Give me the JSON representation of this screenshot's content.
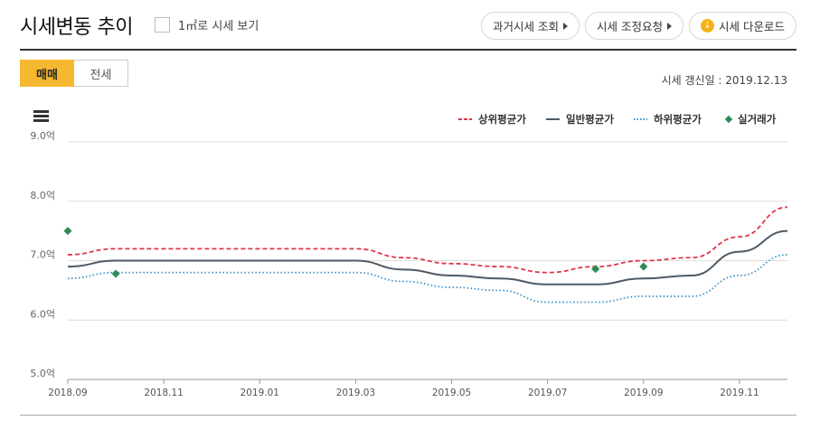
{
  "header": {
    "title": "시세변동 추이",
    "unit_toggle_label": "1㎡로 시세 보기"
  },
  "buttons": {
    "past_price": "과거시세 조회",
    "adjust_request": "시세 조정요청",
    "download": "시세 다운로드",
    "download_icon_glyph": "↓"
  },
  "tabs": [
    {
      "label": "매매",
      "active": true
    },
    {
      "label": "전세",
      "active": false
    }
  ],
  "update_text": "시세 갱신일 : 2019.12.13",
  "colors": {
    "upper": "#e0364a",
    "general": "#4e5a66",
    "lower": "#3d8fc9",
    "actual": "#2e8b57",
    "accent": "#f6b731"
  },
  "chart_data": {
    "type": "line",
    "x_ticks": [
      "2018.09",
      "2018.11",
      "2019.01",
      "2019.03",
      "2019.05",
      "2019.07",
      "2019.09",
      "2019.11"
    ],
    "x_range": [
      "2018.09",
      "2019.12"
    ],
    "ylim": [
      5.0,
      9.0
    ],
    "y_ticks": [
      "5.0억",
      "6.0억",
      "7.0억",
      "8.0억",
      "9.0억"
    ],
    "grid": true,
    "legend_position": "top-right",
    "legend": [
      "상위평균가",
      "일반평균가",
      "하위평균가",
      "실거래가"
    ],
    "series": [
      {
        "name": "상위평균가",
        "style": "dashed",
        "x": [
          "2018.09",
          "2018.10",
          "2018.11",
          "2018.12",
          "2019.01",
          "2019.02",
          "2019.03",
          "2019.04",
          "2019.05",
          "2019.06",
          "2019.07",
          "2019.08",
          "2019.09",
          "2019.10",
          "2019.11",
          "2019.12"
        ],
        "values": [
          7.1,
          7.2,
          7.2,
          7.2,
          7.2,
          7.2,
          7.2,
          7.05,
          6.95,
          6.9,
          6.8,
          6.9,
          7.0,
          7.05,
          7.4,
          7.9
        ]
      },
      {
        "name": "일반평균가",
        "style": "solid",
        "x": [
          "2018.09",
          "2018.10",
          "2018.11",
          "2018.12",
          "2019.01",
          "2019.02",
          "2019.03",
          "2019.04",
          "2019.05",
          "2019.06",
          "2019.07",
          "2019.08",
          "2019.09",
          "2019.10",
          "2019.11",
          "2019.12"
        ],
        "values": [
          6.9,
          7.0,
          7.0,
          7.0,
          7.0,
          7.0,
          7.0,
          6.85,
          6.75,
          6.7,
          6.6,
          6.6,
          6.7,
          6.75,
          7.15,
          7.5
        ]
      },
      {
        "name": "하위평균가",
        "style": "dotted",
        "x": [
          "2018.09",
          "2018.10",
          "2018.11",
          "2018.12",
          "2019.01",
          "2019.02",
          "2019.03",
          "2019.04",
          "2019.05",
          "2019.06",
          "2019.07",
          "2019.08",
          "2019.09",
          "2019.10",
          "2019.11",
          "2019.12"
        ],
        "values": [
          6.7,
          6.8,
          6.8,
          6.8,
          6.8,
          6.8,
          6.8,
          6.65,
          6.55,
          6.5,
          6.3,
          6.3,
          6.4,
          6.4,
          6.75,
          7.1
        ]
      },
      {
        "name": "실거래가",
        "style": "points",
        "x": [
          "2018.09",
          "2018.10",
          "2019.08",
          "2019.09"
        ],
        "values": [
          7.5,
          6.78,
          6.86,
          6.9
        ]
      }
    ]
  }
}
